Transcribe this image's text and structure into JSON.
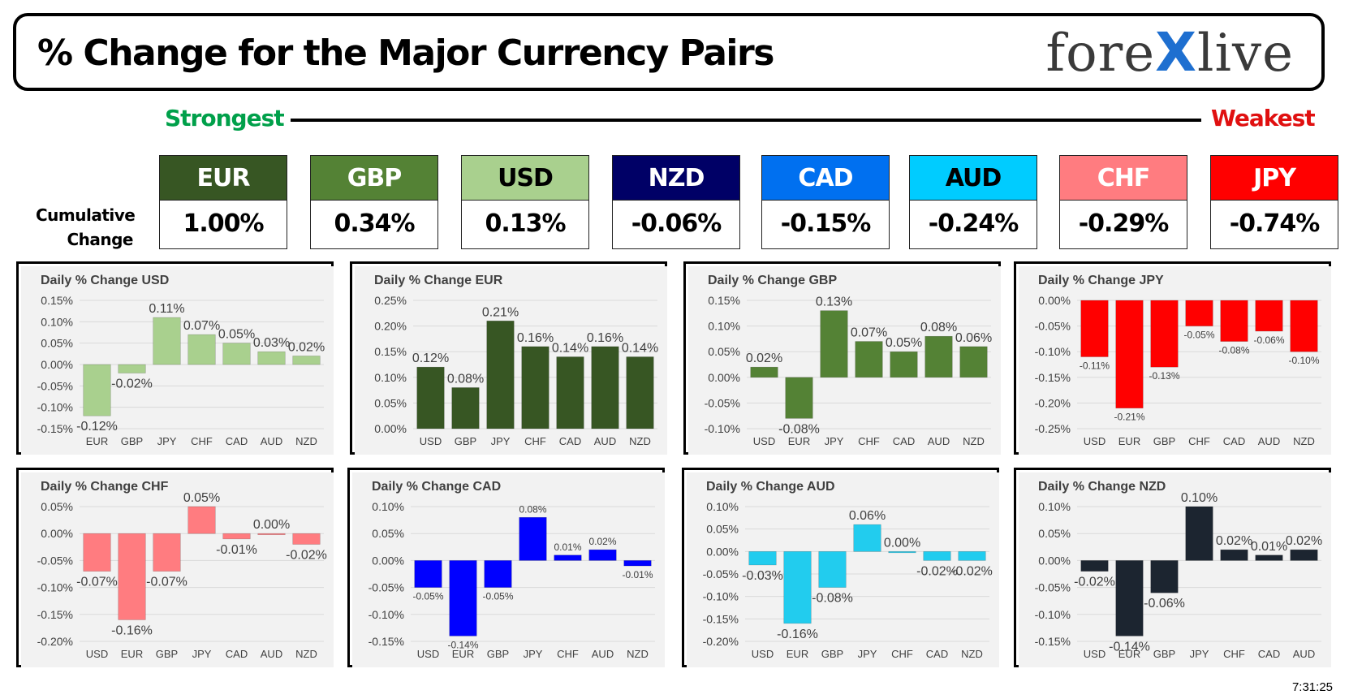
{
  "header": {
    "title": "% Change for the Major Currency Pairs",
    "logo": {
      "left": "fore",
      "x": "X",
      "right": "live"
    }
  },
  "ranking": {
    "strongest_label": "Strongest",
    "weakest_label": "Weakest",
    "cumulative_label": "Cumulative\nChange",
    "currencies": [
      {
        "code": "EUR",
        "value": "1.00%",
        "bg": "#375623",
        "fg": "#ffffff"
      },
      {
        "code": "GBP",
        "value": "0.34%",
        "bg": "#548235",
        "fg": "#ffffff"
      },
      {
        "code": "USD",
        "value": "0.13%",
        "bg": "#a9d08e",
        "fg": "#000000"
      },
      {
        "code": "NZD",
        "value": "-0.06%",
        "bg": "#000066",
        "fg": "#ffffff"
      },
      {
        "code": "CAD",
        "value": "-0.15%",
        "bg": "#0070f0",
        "fg": "#ffffff"
      },
      {
        "code": "AUD",
        "value": "-0.24%",
        "bg": "#00ccff",
        "fg": "#000000"
      },
      {
        "code": "CHF",
        "value": "-0.29%",
        "bg": "#ff7c80",
        "fg": "#ffffff"
      },
      {
        "code": "JPY",
        "value": "-0.74%",
        "bg": "#ff0000",
        "fg": "#ffffff"
      }
    ]
  },
  "timestamp": "7:31:25",
  "chart_data": [
    {
      "type": "bar",
      "title": "Daily % Change USD",
      "categories": [
        "EUR",
        "GBP",
        "JPY",
        "CHF",
        "CAD",
        "AUD",
        "NZD"
      ],
      "values": [
        -0.12,
        -0.02,
        0.11,
        0.07,
        0.05,
        0.03,
        0.02
      ],
      "ylim": [
        -0.15,
        0.15
      ],
      "yticks": [
        0.15,
        0.1,
        0.05,
        0.0,
        -0.05,
        -0.1,
        -0.15
      ],
      "color": "#a9d08e",
      "label_fontsize": "large"
    },
    {
      "type": "bar",
      "title": "Daily % Change EUR",
      "categories": [
        "USD",
        "GBP",
        "JPY",
        "CHF",
        "CAD",
        "AUD",
        "NZD"
      ],
      "values": [
        0.12,
        0.08,
        0.21,
        0.16,
        0.14,
        0.16,
        0.14
      ],
      "ylim": [
        0,
        0.25
      ],
      "yticks": [
        0.25,
        0.2,
        0.15,
        0.1,
        0.05,
        0.0
      ],
      "color": "#375623",
      "label_fontsize": "large"
    },
    {
      "type": "bar",
      "title": "Daily % Change GBP",
      "categories": [
        "USD",
        "EUR",
        "JPY",
        "CHF",
        "CAD",
        "AUD",
        "NZD"
      ],
      "values": [
        0.02,
        -0.08,
        0.13,
        0.07,
        0.05,
        0.08,
        0.06
      ],
      "ylim": [
        -0.1,
        0.15
      ],
      "yticks": [
        0.15,
        0.1,
        0.05,
        0.0,
        -0.05,
        -0.1
      ],
      "color": "#548235",
      "label_fontsize": "large"
    },
    {
      "type": "bar",
      "title": "Daily % Change JPY",
      "categories": [
        "USD",
        "EUR",
        "GBP",
        "CHF",
        "CAD",
        "AUD",
        "NZD"
      ],
      "values": [
        -0.11,
        -0.21,
        -0.13,
        -0.05,
        -0.08,
        -0.06,
        -0.1
      ],
      "ylim": [
        -0.25,
        0
      ],
      "yticks": [
        0.0,
        -0.05,
        -0.1,
        -0.15,
        -0.2,
        -0.25
      ],
      "color": "#ff0000",
      "label_fontsize": "small"
    },
    {
      "type": "bar",
      "title": "Daily % Change CHF",
      "categories": [
        "USD",
        "EUR",
        "GBP",
        "JPY",
        "CAD",
        "AUD",
        "NZD"
      ],
      "values": [
        -0.07,
        -0.16,
        -0.07,
        0.05,
        -0.01,
        0.0,
        -0.02
      ],
      "ylim": [
        -0.2,
        0.05
      ],
      "yticks": [
        0.05,
        0.0,
        -0.05,
        -0.1,
        -0.15,
        -0.2
      ],
      "color": "#ff7c80",
      "label_fontsize": "large"
    },
    {
      "type": "bar",
      "title": "Daily % Change CAD",
      "categories": [
        "USD",
        "EUR",
        "GBP",
        "JPY",
        "CHF",
        "AUD",
        "NZD"
      ],
      "values": [
        -0.05,
        -0.14,
        -0.05,
        0.08,
        0.01,
        0.02,
        -0.01
      ],
      "ylim": [
        -0.15,
        0.1
      ],
      "yticks": [
        0.1,
        0.05,
        0.0,
        -0.05,
        -0.1,
        -0.15
      ],
      "color": "#0000ff",
      "label_fontsize": "small"
    },
    {
      "type": "bar",
      "title": "Daily % Change AUD",
      "categories": [
        "USD",
        "EUR",
        "GBP",
        "JPY",
        "CHF",
        "CAD",
        "NZD"
      ],
      "values": [
        -0.03,
        -0.16,
        -0.08,
        0.06,
        0.0,
        -0.02,
        -0.02
      ],
      "ylim": [
        -0.2,
        0.1
      ],
      "yticks": [
        0.1,
        0.05,
        0.0,
        -0.05,
        -0.1,
        -0.15,
        -0.2
      ],
      "color": "#22ccee",
      "label_fontsize": "large"
    },
    {
      "type": "bar",
      "title": "Daily % Change NZD",
      "categories": [
        "USD",
        "EUR",
        "GBP",
        "JPY",
        "CHF",
        "CAD",
        "AUD"
      ],
      "values": [
        -0.02,
        -0.14,
        -0.06,
        0.1,
        0.02,
        0.01,
        0.02
      ],
      "ylim": [
        -0.15,
        0.1
      ],
      "yticks": [
        0.1,
        0.05,
        0.0,
        -0.05,
        -0.1,
        -0.15
      ],
      "color": "#1c2530",
      "label_fontsize": "large"
    }
  ]
}
